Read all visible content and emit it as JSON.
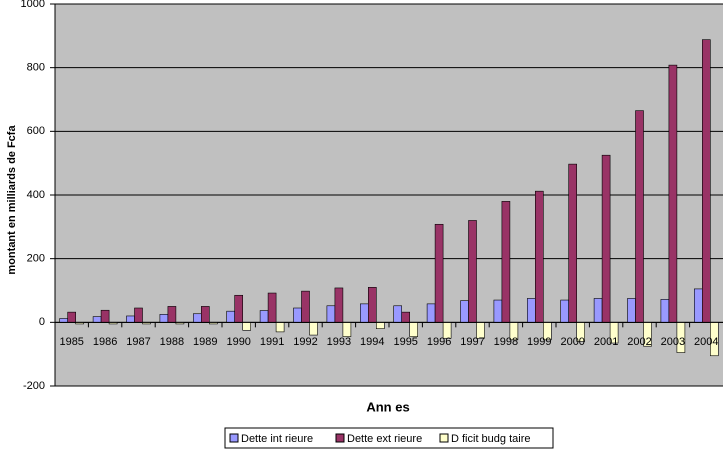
{
  "chart_data": {
    "type": "bar",
    "x_label": "Ann es",
    "y_label": "montant en milliards de Fcfa",
    "categories": [
      "1985",
      "1986",
      "1987",
      "1988",
      "1989",
      "1990",
      "1991",
      "1992",
      "1993",
      "1994",
      "1995",
      "1996",
      "1997",
      "1998",
      "1999",
      "2000",
      "2001",
      "2002",
      "2003",
      "2004"
    ],
    "series": [
      {
        "name": "Dette int rieure",
        "color": "#9999ff",
        "values": [
          12,
          18,
          20,
          25,
          27,
          35,
          37,
          45,
          52,
          58,
          52,
          58,
          68,
          70,
          75,
          70,
          75,
          75,
          72,
          105
        ]
      },
      {
        "name": "Dette ext rieure",
        "color": "#993366",
        "values": [
          32,
          38,
          45,
          50,
          50,
          85,
          92,
          98,
          108,
          110,
          32,
          308,
          320,
          380,
          412,
          497,
          525,
          665,
          808,
          888
        ]
      },
      {
        "name": "D ficit budg taire",
        "color": "#ffffcc",
        "values": [
          -5,
          -5,
          -5,
          -5,
          -5,
          -25,
          -30,
          -40,
          -45,
          -20,
          -45,
          -50,
          -50,
          -55,
          -55,
          -60,
          -65,
          -75,
          -95,
          -105
        ]
      }
    ],
    "ylim": [
      -200,
      1000
    ],
    "yticks": [
      -200,
      0,
      200,
      400,
      600,
      800,
      1000
    ],
    "grid": true
  }
}
